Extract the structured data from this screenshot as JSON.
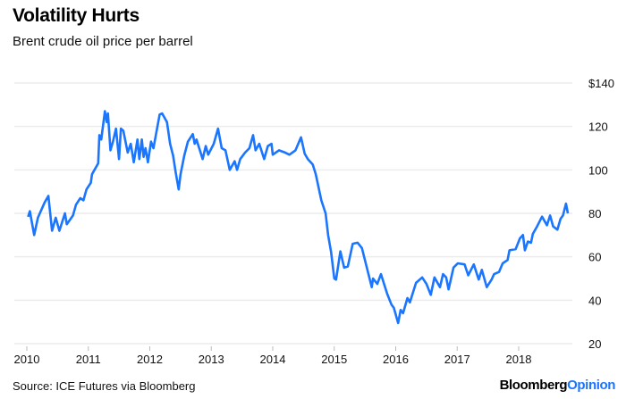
{
  "chart_data": {
    "type": "line",
    "title": "Volatility Hurts",
    "subtitle": "Brent crude oil price per barrel",
    "xlabel": "",
    "ylabel": "",
    "source": "Source: ICE Futures via Bloomberg",
    "logo": {
      "part1": "Bloomberg",
      "part2": "Opinion"
    },
    "xlim": [
      2010,
      2018.85
    ],
    "ylim": [
      20,
      140
    ],
    "grid": true,
    "x_ticks": [
      2010,
      2011,
      2012,
      2013,
      2014,
      2015,
      2016,
      2017,
      2018
    ],
    "x_tick_labels": [
      "2010",
      "2011",
      "2012",
      "2013",
      "2014",
      "2015",
      "2016",
      "2017",
      "2018"
    ],
    "y_ticks": [
      140,
      120,
      100,
      80,
      60,
      40,
      20
    ],
    "y_tick_labels": [
      "$140",
      "120",
      "100",
      "80",
      "60",
      "40",
      "20"
    ],
    "colors": {
      "line": "#1a75ff",
      "grid": "#ececec"
    },
    "series": [
      {
        "name": "Brent crude",
        "x": [
          2010.02,
          2010.05,
          2010.12,
          2010.18,
          2010.29,
          2010.35,
          2010.41,
          2010.47,
          2010.53,
          2010.62,
          2010.65,
          2010.75,
          2010.8,
          2010.87,
          2010.92,
          2010.97,
          2011.04,
          2011.06,
          2011.16,
          2011.18,
          2011.21,
          2011.27,
          2011.3,
          2011.32,
          2011.36,
          2011.4,
          2011.45,
          2011.5,
          2011.53,
          2011.57,
          2011.64,
          2011.69,
          2011.74,
          2011.8,
          2011.83,
          2011.87,
          2011.9,
          2011.93,
          2011.97,
          2012.02,
          2012.06,
          2012.16,
          2012.2,
          2012.28,
          2012.33,
          2012.38,
          2012.42,
          2012.47,
          2012.5,
          2012.56,
          2012.62,
          2012.7,
          2012.73,
          2012.76,
          2012.86,
          2012.91,
          2012.95,
          2013.04,
          2013.11,
          2013.17,
          2013.23,
          2013.3,
          2013.38,
          2013.42,
          2013.47,
          2013.55,
          2013.62,
          2013.68,
          2013.72,
          2013.78,
          2013.86,
          2013.92,
          2013.98,
          2014.0,
          2014.1,
          2014.2,
          2014.27,
          2014.37,
          2014.46,
          2014.52,
          2014.57,
          2014.65,
          2014.7,
          2014.79,
          2014.86,
          2014.9,
          2014.95,
          2015.0,
          2015.03,
          2015.1,
          2015.16,
          2015.22,
          2015.3,
          2015.38,
          2015.45,
          2015.53,
          2015.61,
          2015.63,
          2015.7,
          2015.76,
          2015.86,
          2015.93,
          2015.97,
          2016.04,
          2016.08,
          2016.12,
          2016.19,
          2016.23,
          2016.33,
          2016.43,
          2016.5,
          2016.57,
          2016.63,
          2016.72,
          2016.77,
          2016.82,
          2016.86,
          2016.94,
          2017.01,
          2017.12,
          2017.18,
          2017.27,
          2017.35,
          2017.4,
          2017.48,
          2017.56,
          2017.6,
          2017.68,
          2017.74,
          2017.82,
          2017.85,
          2017.95,
          2018.02,
          2018.07,
          2018.1,
          2018.15,
          2018.2,
          2018.23,
          2018.3,
          2018.38,
          2018.46,
          2018.51,
          2018.56,
          2018.63,
          2018.68,
          2018.72,
          2018.77,
          2018.8
        ],
        "y": [
          78.4,
          81,
          70,
          78,
          85,
          88,
          72,
          78,
          72,
          80,
          75,
          79,
          84,
          87,
          86,
          91,
          94,
          98,
          103,
          116,
          114,
          127,
          122,
          126,
          109,
          113,
          119,
          105,
          119,
          118,
          108,
          112,
          103.5,
          114,
          105,
          114,
          106,
          110,
          103.5,
          113,
          110,
          125.5,
          126,
          122,
          112,
          106.5,
          99,
          91,
          98,
          106.5,
          113,
          116.5,
          112,
          114,
          105,
          111,
          107,
          112,
          119,
          110,
          109,
          100,
          104,
          100,
          105,
          108,
          110,
          116,
          109,
          112,
          105,
          111,
          112,
          107,
          109,
          108,
          107,
          109,
          115,
          107.5,
          105,
          102.5,
          98,
          86,
          80,
          70,
          62,
          50,
          49.5,
          62.5,
          55,
          55.5,
          66,
          66.5,
          64,
          55,
          46,
          50,
          47.5,
          52,
          43,
          38,
          36.5,
          29.5,
          35.5,
          34,
          41,
          39,
          48,
          50.5,
          47.5,
          42.5,
          50.5,
          46,
          52,
          50.5,
          45,
          55,
          57,
          56.5,
          51.5,
          56.5,
          49.5,
          54,
          46,
          49.5,
          52,
          53,
          57,
          58.5,
          63,
          63.5,
          68.5,
          70,
          63,
          67,
          66.5,
          70.5,
          74,
          78.5,
          74.5,
          79,
          74,
          72.5,
          77.5,
          79,
          84.5,
          80
        ]
      }
    ]
  }
}
